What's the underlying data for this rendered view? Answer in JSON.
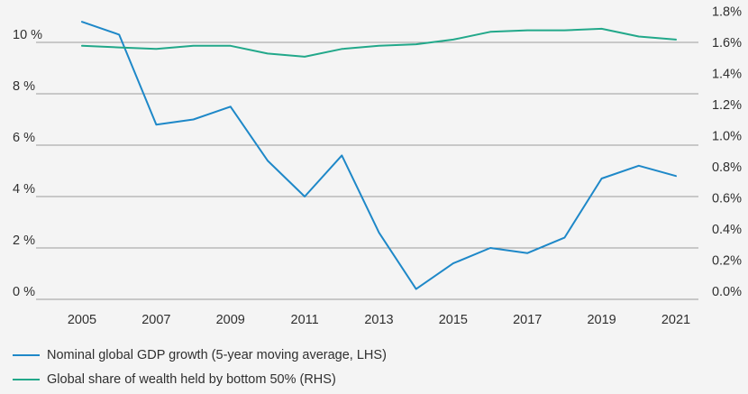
{
  "chart_data": {
    "type": "line",
    "x": [
      2005,
      2006,
      2007,
      2008,
      2009,
      2010,
      2011,
      2012,
      2013,
      2014,
      2015,
      2016,
      2017,
      2018,
      2019,
      2020,
      2021
    ],
    "xticks": [
      "2005",
      "2007",
      "2009",
      "2011",
      "2013",
      "2015",
      "2017",
      "2019",
      "2021"
    ],
    "yticks_left": [
      "0 %",
      "2 %",
      "4 %",
      "6 %",
      "8 %",
      "10 %"
    ],
    "yticks_right": [
      "0.0%",
      "0.2%",
      "0.4%",
      "0.6%",
      "0.8%",
      "1.0%",
      "1.2%",
      "1.4%",
      "1.6%",
      "1.8%"
    ],
    "ylim_left": [
      0,
      10.5
    ],
    "ylim_right": [
      0,
      1.8
    ],
    "series": [
      {
        "name": "Nominal global GDP growth (5-year moving average, LHS)",
        "axis": "left",
        "color": "#1e88c8",
        "values": [
          10.8,
          10.3,
          6.8,
          7.0,
          7.5,
          5.4,
          4.0,
          5.6,
          2.6,
          0.4,
          1.4,
          2.0,
          1.8,
          2.4,
          4.7,
          5.2,
          4.8
        ]
      },
      {
        "name": "Global share of wealth held by bottom 50% (RHS)",
        "axis": "right",
        "color": "#22a88a",
        "values": [
          1.63,
          1.62,
          1.61,
          1.63,
          1.63,
          1.58,
          1.56,
          1.61,
          1.63,
          1.64,
          1.67,
          1.72,
          1.73,
          1.73,
          1.74,
          1.69,
          1.67
        ]
      }
    ],
    "grid": true,
    "legend_position": "bottom-left"
  }
}
